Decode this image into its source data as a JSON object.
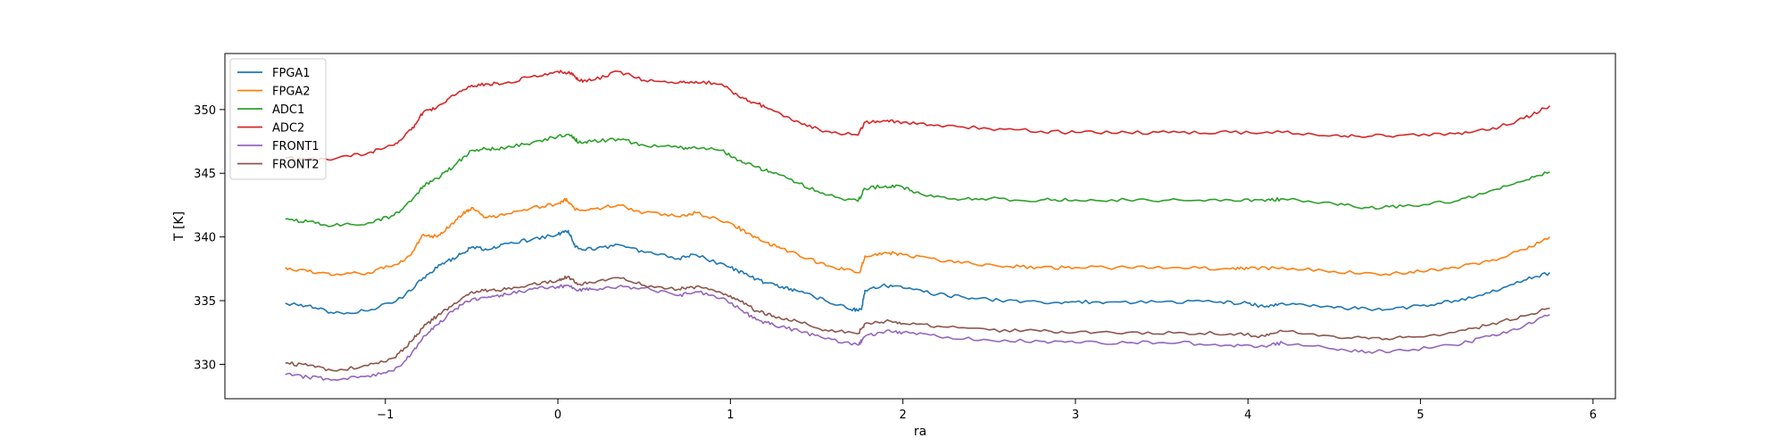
{
  "chart_data": {
    "type": "line",
    "xlabel": "ra",
    "ylabel": "T [K]",
    "xlim": [
      -1.93,
      6.13
    ],
    "ylim": [
      327.3,
      354.4
    ],
    "xticks": [
      -1,
      0,
      1,
      2,
      3,
      4,
      5,
      6
    ],
    "xtick_labels": [
      "−1",
      "0",
      "1",
      "2",
      "3",
      "4",
      "5",
      "6"
    ],
    "yticks": [
      330,
      335,
      340,
      345,
      350
    ],
    "ytick_labels": [
      "330",
      "335",
      "340",
      "345",
      "350"
    ],
    "grid": false,
    "legend_position": "top-left",
    "series": [
      {
        "name": "FPGA1",
        "color": "#1f77b4",
        "points": [
          [
            -1.58,
            334.8
          ],
          [
            -1.45,
            334.6
          ],
          [
            -1.3,
            334.0
          ],
          [
            -1.1,
            334.2
          ],
          [
            -0.9,
            335.2
          ],
          [
            -0.78,
            336.8
          ],
          [
            -0.68,
            337.8
          ],
          [
            -0.58,
            338.5
          ],
          [
            -0.5,
            339.2
          ],
          [
            -0.4,
            339.0
          ],
          [
            -0.3,
            339.5
          ],
          [
            -0.15,
            339.8
          ],
          [
            0.0,
            340.2
          ],
          [
            0.06,
            340.5
          ],
          [
            0.1,
            339.2
          ],
          [
            0.2,
            339.0
          ],
          [
            0.35,
            339.4
          ],
          [
            0.5,
            338.8
          ],
          [
            0.7,
            338.3
          ],
          [
            0.8,
            338.6
          ],
          [
            1.0,
            337.6
          ],
          [
            1.1,
            337.0
          ],
          [
            1.2,
            336.4
          ],
          [
            1.3,
            336.1
          ],
          [
            1.4,
            335.7
          ],
          [
            1.55,
            335.0
          ],
          [
            1.7,
            334.3
          ],
          [
            1.76,
            334.3
          ],
          [
            1.78,
            335.8
          ],
          [
            1.88,
            336.2
          ],
          [
            2.0,
            336.0
          ],
          [
            2.2,
            335.5
          ],
          [
            2.4,
            335.2
          ],
          [
            2.6,
            335.0
          ],
          [
            2.8,
            334.9
          ],
          [
            3.0,
            334.9
          ],
          [
            3.2,
            334.9
          ],
          [
            3.5,
            334.9
          ],
          [
            3.8,
            334.9
          ],
          [
            4.0,
            334.8
          ],
          [
            4.1,
            334.5
          ],
          [
            4.2,
            334.8
          ],
          [
            4.4,
            334.6
          ],
          [
            4.6,
            334.4
          ],
          [
            4.8,
            334.3
          ],
          [
            5.0,
            334.6
          ],
          [
            5.2,
            335.0
          ],
          [
            5.4,
            335.6
          ],
          [
            5.6,
            336.6
          ],
          [
            5.75,
            337.2
          ]
        ]
      },
      {
        "name": "FPGA2",
        "color": "#ff7f0e",
        "points": [
          [
            -1.58,
            337.6
          ],
          [
            -1.45,
            337.3
          ],
          [
            -1.3,
            337.0
          ],
          [
            -1.1,
            337.2
          ],
          [
            -0.95,
            337.8
          ],
          [
            -0.85,
            338.6
          ],
          [
            -0.78,
            340.2
          ],
          [
            -0.7,
            340.0
          ],
          [
            -0.62,
            341.0
          ],
          [
            -0.55,
            341.8
          ],
          [
            -0.5,
            342.3
          ],
          [
            -0.42,
            341.5
          ],
          [
            -0.3,
            341.8
          ],
          [
            -0.15,
            342.3
          ],
          [
            0.0,
            342.6
          ],
          [
            0.05,
            343.0
          ],
          [
            0.1,
            342.1
          ],
          [
            0.2,
            342.2
          ],
          [
            0.35,
            342.5
          ],
          [
            0.5,
            341.9
          ],
          [
            0.7,
            341.6
          ],
          [
            0.8,
            341.9
          ],
          [
            1.0,
            341.1
          ],
          [
            1.1,
            340.3
          ],
          [
            1.2,
            339.6
          ],
          [
            1.3,
            339.1
          ],
          [
            1.45,
            338.3
          ],
          [
            1.6,
            337.6
          ],
          [
            1.75,
            337.2
          ],
          [
            1.78,
            338.5
          ],
          [
            1.9,
            338.8
          ],
          [
            2.0,
            338.6
          ],
          [
            2.2,
            338.2
          ],
          [
            2.4,
            337.9
          ],
          [
            2.6,
            337.7
          ],
          [
            2.8,
            337.6
          ],
          [
            3.0,
            337.6
          ],
          [
            3.3,
            337.6
          ],
          [
            3.6,
            337.6
          ],
          [
            3.9,
            337.5
          ],
          [
            4.0,
            337.5
          ],
          [
            4.2,
            337.6
          ],
          [
            4.5,
            337.3
          ],
          [
            4.8,
            337.1
          ],
          [
            5.0,
            337.3
          ],
          [
            5.2,
            337.6
          ],
          [
            5.4,
            338.1
          ],
          [
            5.6,
            339.0
          ],
          [
            5.75,
            340.0
          ]
        ]
      },
      {
        "name": "ADC1",
        "color": "#2ca02c",
        "points": [
          [
            -1.58,
            341.4
          ],
          [
            -1.45,
            341.2
          ],
          [
            -1.3,
            340.9
          ],
          [
            -1.1,
            341.1
          ],
          [
            -0.95,
            341.7
          ],
          [
            -0.85,
            342.8
          ],
          [
            -0.78,
            344.0
          ],
          [
            -0.7,
            344.6
          ],
          [
            -0.6,
            345.6
          ],
          [
            -0.5,
            346.8
          ],
          [
            -0.4,
            346.9
          ],
          [
            -0.3,
            347.0
          ],
          [
            -0.15,
            347.4
          ],
          [
            0.0,
            347.9
          ],
          [
            0.08,
            348.0
          ],
          [
            0.12,
            347.4
          ],
          [
            0.2,
            347.5
          ],
          [
            0.35,
            347.7
          ],
          [
            0.5,
            347.2
          ],
          [
            0.7,
            347.0
          ],
          [
            0.8,
            347.0
          ],
          [
            0.95,
            346.8
          ],
          [
            1.05,
            346.0
          ],
          [
            1.15,
            345.5
          ],
          [
            1.25,
            345.0
          ],
          [
            1.4,
            344.2
          ],
          [
            1.55,
            343.3
          ],
          [
            1.74,
            342.8
          ],
          [
            1.78,
            343.8
          ],
          [
            1.9,
            344.0
          ],
          [
            2.0,
            343.9
          ],
          [
            2.1,
            343.4
          ],
          [
            2.3,
            343.0
          ],
          [
            2.5,
            343.0
          ],
          [
            2.8,
            342.9
          ],
          [
            3.0,
            342.9
          ],
          [
            3.3,
            342.9
          ],
          [
            3.6,
            342.9
          ],
          [
            3.9,
            342.9
          ],
          [
            4.1,
            342.8
          ],
          [
            4.2,
            343.0
          ],
          [
            4.5,
            342.6
          ],
          [
            4.7,
            342.3
          ],
          [
            4.9,
            342.4
          ],
          [
            5.2,
            342.8
          ],
          [
            5.4,
            343.6
          ],
          [
            5.6,
            344.4
          ],
          [
            5.75,
            345.1
          ]
        ]
      },
      {
        "name": "ADC2",
        "color": "#d62728",
        "points": [
          [
            -1.58,
            346.2
          ],
          [
            -1.45,
            346.1
          ],
          [
            -1.3,
            346.1
          ],
          [
            -1.1,
            346.6
          ],
          [
            -0.95,
            347.2
          ],
          [
            -0.85,
            348.4
          ],
          [
            -0.78,
            349.8
          ],
          [
            -0.7,
            350.2
          ],
          [
            -0.6,
            351.1
          ],
          [
            -0.5,
            351.9
          ],
          [
            -0.4,
            352.0
          ],
          [
            -0.3,
            352.1
          ],
          [
            -0.15,
            352.6
          ],
          [
            0.0,
            353.0
          ],
          [
            0.08,
            352.9
          ],
          [
            0.12,
            352.3
          ],
          [
            0.2,
            352.3
          ],
          [
            0.35,
            353.0
          ],
          [
            0.5,
            352.3
          ],
          [
            0.7,
            352.1
          ],
          [
            0.8,
            352.2
          ],
          [
            0.95,
            352.0
          ],
          [
            1.05,
            351.0
          ],
          [
            1.15,
            350.5
          ],
          [
            1.25,
            349.9
          ],
          [
            1.4,
            349.0
          ],
          [
            1.55,
            348.3
          ],
          [
            1.74,
            348.0
          ],
          [
            1.78,
            349.0
          ],
          [
            1.9,
            349.1
          ],
          [
            2.0,
            349.0
          ],
          [
            2.2,
            348.8
          ],
          [
            2.5,
            348.5
          ],
          [
            2.8,
            348.3
          ],
          [
            3.0,
            348.2
          ],
          [
            3.3,
            348.2
          ],
          [
            3.6,
            348.2
          ],
          [
            3.9,
            348.2
          ],
          [
            4.2,
            348.2
          ],
          [
            4.5,
            348.0
          ],
          [
            4.7,
            347.9
          ],
          [
            4.9,
            348.0
          ],
          [
            5.2,
            348.1
          ],
          [
            5.4,
            348.4
          ],
          [
            5.6,
            349.3
          ],
          [
            5.75,
            350.3
          ]
        ]
      },
      {
        "name": "FRONT1",
        "color": "#9467bd",
        "points": [
          [
            -1.58,
            329.2
          ],
          [
            -1.45,
            329.0
          ],
          [
            -1.3,
            328.8
          ],
          [
            -1.1,
            329.1
          ],
          [
            -0.95,
            329.5
          ],
          [
            -0.85,
            330.8
          ],
          [
            -0.78,
            332.2
          ],
          [
            -0.7,
            333.1
          ],
          [
            -0.6,
            334.3
          ],
          [
            -0.5,
            335.1
          ],
          [
            -0.4,
            335.3
          ],
          [
            -0.3,
            335.5
          ],
          [
            -0.15,
            335.9
          ],
          [
            0.0,
            336.1
          ],
          [
            0.06,
            336.2
          ],
          [
            0.12,
            335.8
          ],
          [
            0.2,
            335.9
          ],
          [
            0.35,
            336.1
          ],
          [
            0.5,
            336.0
          ],
          [
            0.7,
            335.4
          ],
          [
            0.8,
            335.7
          ],
          [
            0.95,
            335.2
          ],
          [
            1.05,
            334.4
          ],
          [
            1.15,
            333.5
          ],
          [
            1.25,
            333.1
          ],
          [
            1.4,
            332.6
          ],
          [
            1.55,
            332.0
          ],
          [
            1.74,
            331.5
          ],
          [
            1.78,
            332.2
          ],
          [
            1.9,
            332.6
          ],
          [
            2.0,
            332.5
          ],
          [
            2.2,
            332.2
          ],
          [
            2.5,
            331.9
          ],
          [
            2.8,
            331.8
          ],
          [
            3.0,
            331.7
          ],
          [
            3.3,
            331.7
          ],
          [
            3.6,
            331.7
          ],
          [
            3.9,
            331.5
          ],
          [
            4.1,
            331.4
          ],
          [
            4.2,
            331.7
          ],
          [
            4.5,
            331.2
          ],
          [
            4.7,
            331.0
          ],
          [
            4.9,
            331.1
          ],
          [
            5.2,
            331.5
          ],
          [
            5.4,
            332.2
          ],
          [
            5.6,
            333.0
          ],
          [
            5.75,
            333.9
          ]
        ]
      },
      {
        "name": "FRONT2",
        "color": "#8c564b",
        "points": [
          [
            -1.58,
            330.1
          ],
          [
            -1.45,
            329.9
          ],
          [
            -1.3,
            329.5
          ],
          [
            -1.1,
            329.9
          ],
          [
            -0.95,
            330.5
          ],
          [
            -0.85,
            331.8
          ],
          [
            -0.78,
            332.9
          ],
          [
            -0.7,
            333.8
          ],
          [
            -0.6,
            334.8
          ],
          [
            -0.5,
            335.7
          ],
          [
            -0.4,
            335.8
          ],
          [
            -0.3,
            335.9
          ],
          [
            -0.15,
            336.3
          ],
          [
            0.0,
            336.6
          ],
          [
            0.06,
            336.9
          ],
          [
            0.12,
            336.3
          ],
          [
            0.2,
            336.4
          ],
          [
            0.35,
            336.8
          ],
          [
            0.5,
            336.2
          ],
          [
            0.7,
            335.9
          ],
          [
            0.8,
            336.1
          ],
          [
            0.95,
            335.6
          ],
          [
            1.05,
            335.0
          ],
          [
            1.15,
            334.2
          ],
          [
            1.25,
            333.8
          ],
          [
            1.4,
            333.3
          ],
          [
            1.55,
            332.7
          ],
          [
            1.74,
            332.4
          ],
          [
            1.78,
            333.2
          ],
          [
            1.9,
            333.4
          ],
          [
            2.0,
            333.2
          ],
          [
            2.2,
            333.0
          ],
          [
            2.5,
            332.7
          ],
          [
            2.8,
            332.6
          ],
          [
            3.0,
            332.5
          ],
          [
            3.3,
            332.5
          ],
          [
            3.6,
            332.5
          ],
          [
            3.9,
            332.4
          ],
          [
            4.1,
            332.2
          ],
          [
            4.2,
            332.6
          ],
          [
            4.5,
            332.2
          ],
          [
            4.7,
            332.0
          ],
          [
            4.9,
            332.1
          ],
          [
            5.2,
            332.5
          ],
          [
            5.4,
            333.1
          ],
          [
            5.6,
            333.8
          ],
          [
            5.75,
            334.4
          ]
        ]
      }
    ]
  }
}
